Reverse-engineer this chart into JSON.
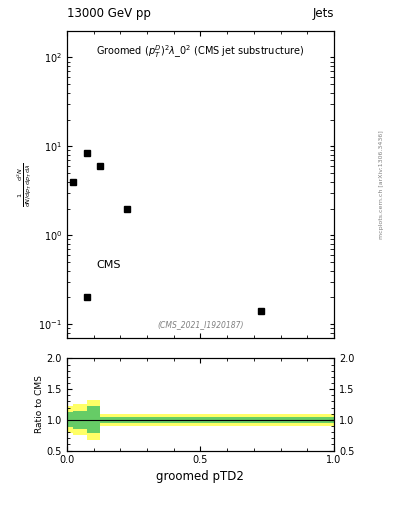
{
  "title_top_left": "13000 GeV pp",
  "title_top_right": "Jets",
  "plot_title": "Groomed $(p_T^D)^2\\lambda\\_0^2$ (CMS jet substructure)",
  "watermark": "(CMS_2021_I1920187)",
  "ylabel_main_lines": [
    "mathrm d$^2$N",
    "mathrm d p$_T$ mathrm d lambda"
  ],
  "ylabel_ratio": "Ratio to CMS",
  "xlabel": "groomed pTD2",
  "right_label": "mcplots.cern.ch [arXiv:1306.3436]",
  "cms_label": "CMS",
  "data_x": [
    0.025,
    0.075,
    0.125,
    0.225,
    0.075,
    0.725
  ],
  "data_y": [
    4.0,
    8.5,
    6.0,
    2.0,
    0.2,
    0.14
  ],
  "xlim": [
    0.0,
    1.0
  ],
  "ylim_main": [
    0.07,
    200
  ],
  "ylim_ratio": [
    0.5,
    2.0
  ],
  "ratio_line_y": 1.0,
  "marker": "s",
  "marker_color": "black",
  "marker_size": 4,
  "background_color": "white",
  "green_color": "#66cc66",
  "yellow_color": "#ffff66",
  "ratio_line_color": "black",
  "ratio_band_data": [
    [
      0.0,
      0.025,
      0.78,
      1.22,
      0.88,
      1.12
    ],
    [
      0.025,
      0.075,
      0.75,
      1.25,
      0.85,
      1.15
    ],
    [
      0.075,
      0.125,
      0.68,
      1.32,
      0.78,
      1.22
    ],
    [
      0.125,
      1.0,
      0.9,
      1.1,
      0.95,
      1.05
    ]
  ]
}
